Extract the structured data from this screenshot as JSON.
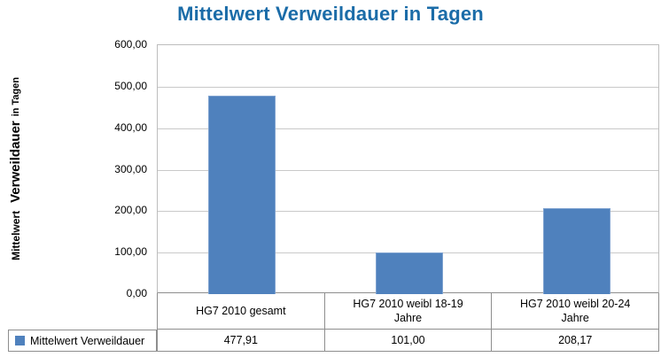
{
  "chart_data": {
    "type": "bar",
    "title": "Mittelwert Verweildauer in Tagen",
    "ylabel_parts": {
      "part1": "Mittelwert",
      "part2": "Verweildauer",
      "part3": "in Tagen"
    },
    "categories": [
      "HG7 2010 gesamt",
      "HG7 2010 weibl 18-19\nJahre",
      "HG7 2010 weibl 20-24\nJahre"
    ],
    "series": [
      {
        "name": "Mittelwert Verweildauer",
        "values": [
          477.91,
          101.0,
          208.17
        ]
      }
    ],
    "values_display": [
      "477,91",
      "101,00",
      "208,17"
    ],
    "ylim": [
      0,
      600
    ],
    "ytick_interval": 100,
    "yticks_display": [
      "600,00",
      "500,00",
      "400,00",
      "300,00",
      "200,00",
      "100,00",
      "0,00"
    ],
    "grid": "horizontal",
    "legend_position": "bottom-table",
    "bar_color": "#4F81BD",
    "bar_border_color": "#7EA2D0",
    "title_color": "#1B6CA8",
    "grid_color": "#C9C9C9",
    "table_border_color": "#8E8E8E"
  }
}
